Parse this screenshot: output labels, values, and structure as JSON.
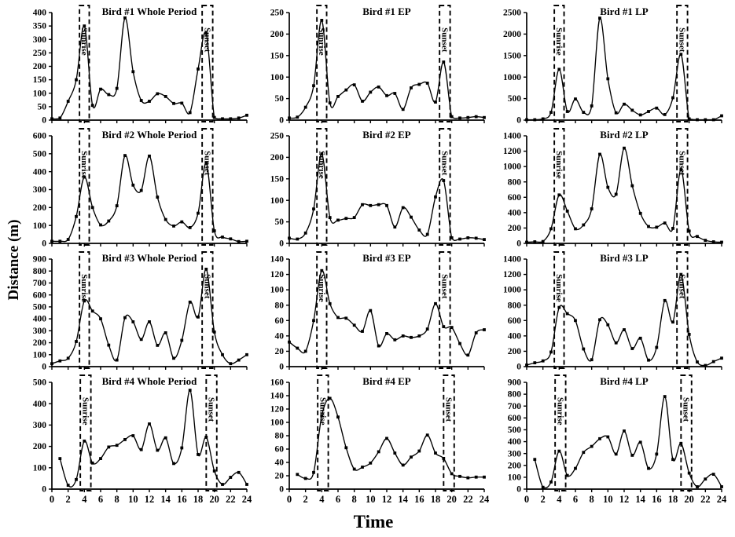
{
  "figure": {
    "ylabel": "Distance (m)",
    "xlabel": "Time",
    "sunrise_label": "Sunrise",
    "sunset_label": "Sunset",
    "line_color": "#000000",
    "background": "#ffffff"
  },
  "chart_data": [
    {
      "type": "line",
      "title": "Bird #1 Whole Period",
      "x_start": 0,
      "values": [
        5,
        8,
        70,
        150,
        350,
        55,
        115,
        95,
        118,
        380,
        180,
        73,
        70,
        98,
        88,
        62,
        63,
        28,
        190,
        323,
        10,
        5,
        5,
        8,
        18
      ],
      "xlim": [
        0,
        24
      ],
      "xtick_step": 2,
      "ylim": [
        0,
        400
      ],
      "ytick_step": 50,
      "sunrise": [
        3.4,
        4.6
      ],
      "sunset": [
        18.5,
        19.8
      ],
      "show_x_labels": false
    },
    {
      "type": "line",
      "title": "Bird #1 EP",
      "x_start": 0,
      "values": [
        5,
        7,
        30,
        80,
        232,
        40,
        55,
        70,
        82,
        44,
        65,
        77,
        57,
        62,
        25,
        75,
        83,
        86,
        42,
        135,
        8,
        5,
        6,
        8,
        6
      ],
      "xlim": [
        0,
        24
      ],
      "xtick_step": 2,
      "ylim": [
        0,
        250
      ],
      "ytick_step": 50,
      "sunrise": [
        3.4,
        4.6
      ],
      "sunset": [
        18.5,
        19.8
      ],
      "show_x_labels": false
    },
    {
      "type": "line",
      "title": "Bird #1 LP",
      "x_start": 0,
      "values": [
        10,
        10,
        30,
        180,
        1180,
        200,
        490,
        180,
        330,
        2370,
        960,
        170,
        370,
        230,
        120,
        200,
        280,
        130,
        520,
        1530,
        30,
        10,
        10,
        10,
        100
      ],
      "xlim": [
        0,
        24
      ],
      "xtick_step": 2,
      "ylim": [
        0,
        2500
      ],
      "ytick_step": 500,
      "sunrise": [
        3.4,
        4.6
      ],
      "sunset": [
        18.5,
        19.8
      ],
      "show_x_labels": false
    },
    {
      "type": "line",
      "title": "Bird #2 Whole Period",
      "x_start": 0,
      "values": [
        12,
        12,
        22,
        150,
        370,
        200,
        103,
        125,
        210,
        490,
        325,
        295,
        487,
        258,
        133,
        97,
        120,
        88,
        168,
        448,
        70,
        35,
        25,
        10,
        12
      ],
      "xlim": [
        0,
        24
      ],
      "xtick_step": 2,
      "ylim": [
        0,
        600
      ],
      "ytick_step": 100,
      "sunrise": [
        3.4,
        4.6
      ],
      "sunset": [
        18.5,
        19.8
      ],
      "show_x_labels": false
    },
    {
      "type": "line",
      "title": "Bird #2 EP",
      "x_start": 0,
      "values": [
        12,
        10,
        24,
        80,
        208,
        60,
        54,
        58,
        60,
        90,
        88,
        90,
        88,
        38,
        83,
        61,
        31,
        21,
        108,
        146,
        13,
        10,
        13,
        12,
        9
      ],
      "xlim": [
        0,
        24
      ],
      "xtick_step": 2,
      "ylim": [
        0,
        250
      ],
      "ytick_step": 50,
      "sunrise": [
        3.4,
        4.6
      ],
      "sunset": [
        18.5,
        19.8
      ],
      "show_x_labels": false
    },
    {
      "type": "line",
      "title": "Bird #2 LP",
      "x_start": 0,
      "values": [
        15,
        20,
        25,
        190,
        630,
        420,
        190,
        240,
        450,
        1160,
        730,
        640,
        1240,
        750,
        390,
        220,
        210,
        265,
        195,
        960,
        160,
        90,
        40,
        20,
        15
      ],
      "xlim": [
        0,
        24
      ],
      "xtick_step": 2,
      "ylim": [
        0,
        1400
      ],
      "ytick_step": 200,
      "sunrise": [
        3.4,
        4.6
      ],
      "sunset": [
        18.5,
        19.8
      ],
      "show_x_labels": false
    },
    {
      "type": "line",
      "title": "Bird #3 Whole Period",
      "x_start": 0,
      "values": [
        25,
        48,
        70,
        210,
        550,
        465,
        400,
        180,
        55,
        410,
        375,
        228,
        375,
        178,
        283,
        70,
        220,
        540,
        415,
        815,
        290,
        100,
        25,
        55,
        100
      ],
      "xlim": [
        0,
        24
      ],
      "xtick_step": 2,
      "ylim": [
        0,
        900
      ],
      "ytick_step": 100,
      "sunrise": [
        3.4,
        4.6
      ],
      "sunset": [
        18.5,
        19.8
      ],
      "show_x_labels": false
    },
    {
      "type": "line",
      "title": "Bird #3 EP",
      "x_start": 0,
      "values": [
        32,
        24,
        20,
        60,
        125,
        82,
        64,
        63,
        54,
        46,
        73,
        27,
        43,
        35,
        40,
        38,
        40,
        49,
        82,
        52,
        51,
        30,
        15,
        44,
        48
      ],
      "xlim": [
        0,
        24
      ],
      "xtick_step": 2,
      "ylim": [
        0,
        140
      ],
      "ytick_step": 20,
      "sunrise": [
        3.4,
        4.6
      ],
      "sunset": [
        18.5,
        19.8
      ],
      "show_x_labels": false
    },
    {
      "type": "line",
      "title": "Bird #3 LP",
      "x_start": 0,
      "values": [
        20,
        50,
        75,
        190,
        770,
        690,
        600,
        230,
        90,
        610,
        545,
        310,
        480,
        235,
        370,
        85,
        250,
        860,
        580,
        1200,
        420,
        60,
        15,
        65,
        110
      ],
      "xlim": [
        0,
        24
      ],
      "xtick_step": 2,
      "ylim": [
        0,
        1400
      ],
      "ytick_step": 200,
      "sunrise": [
        3.4,
        4.6
      ],
      "sunset": [
        18.5,
        19.8
      ],
      "show_x_labels": false
    },
    {
      "type": "line",
      "title": "Bird #4 Whole Period",
      "x_start": 1,
      "values": [
        143,
        18,
        45,
        225,
        122,
        143,
        197,
        205,
        232,
        250,
        185,
        305,
        182,
        240,
        120,
        193,
        463,
        162,
        243,
        85,
        22,
        55,
        78,
        22
      ],
      "xlim": [
        0,
        24
      ],
      "xtick_step": 2,
      "ylim": [
        0,
        500
      ],
      "ytick_step": 100,
      "sunrise": [
        3.5,
        4.8
      ],
      "sunset": [
        19.0,
        20.3
      ],
      "show_x_labels": true
    },
    {
      "type": "line",
      "title": "Bird #4 EP",
      "x_start": 1,
      "values": [
        22,
        16,
        25,
        110,
        136,
        108,
        62,
        30,
        33,
        39,
        56,
        76,
        54,
        36,
        48,
        57,
        81,
        54,
        46,
        23,
        19,
        17,
        18,
        18
      ],
      "xlim": [
        0,
        24
      ],
      "xtick_step": 2,
      "ylim": [
        0,
        160
      ],
      "ytick_step": 20,
      "sunrise": [
        3.5,
        4.8
      ],
      "sunset": [
        19.0,
        20.3
      ],
      "show_x_labels": true
    },
    {
      "type": "line",
      "title": "Bird #4 LP",
      "x_start": 1,
      "values": [
        250,
        15,
        60,
        320,
        115,
        175,
        310,
        360,
        425,
        440,
        295,
        490,
        285,
        395,
        175,
        295,
        780,
        250,
        385,
        135,
        20,
        85,
        125,
        20
      ],
      "xlim": [
        0,
        24
      ],
      "xtick_step": 2,
      "ylim": [
        0,
        900
      ],
      "ytick_step": 100,
      "sunrise": [
        3.5,
        4.8
      ],
      "sunset": [
        19.0,
        20.3
      ],
      "show_x_labels": true
    }
  ]
}
